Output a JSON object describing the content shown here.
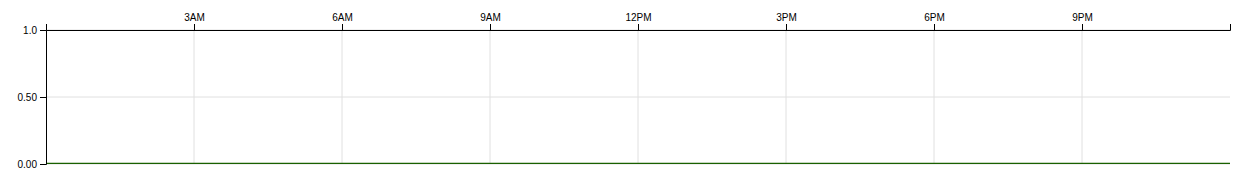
{
  "chart_data": {
    "type": "line",
    "x": [
      0,
      24
    ],
    "values": [
      0.0,
      0.0
    ],
    "color": "#1a6000",
    "xlim": [
      0,
      24
    ],
    "xticks": [
      {
        "value": 3,
        "label": "3AM"
      },
      {
        "value": 6,
        "label": "6AM"
      },
      {
        "value": 9,
        "label": "9AM"
      },
      {
        "value": 12,
        "label": "12PM"
      },
      {
        "value": 15,
        "label": "3PM"
      },
      {
        "value": 18,
        "label": "6PM"
      },
      {
        "value": 21,
        "label": "9PM"
      }
    ],
    "ylim": [
      0.0,
      1.0
    ],
    "yticks": [
      {
        "value": 0.0,
        "label": "0.00"
      },
      {
        "value": 0.5,
        "label": "0.50"
      },
      {
        "value": 1.0,
        "label": "1.0"
      }
    ],
    "grid": true
  }
}
